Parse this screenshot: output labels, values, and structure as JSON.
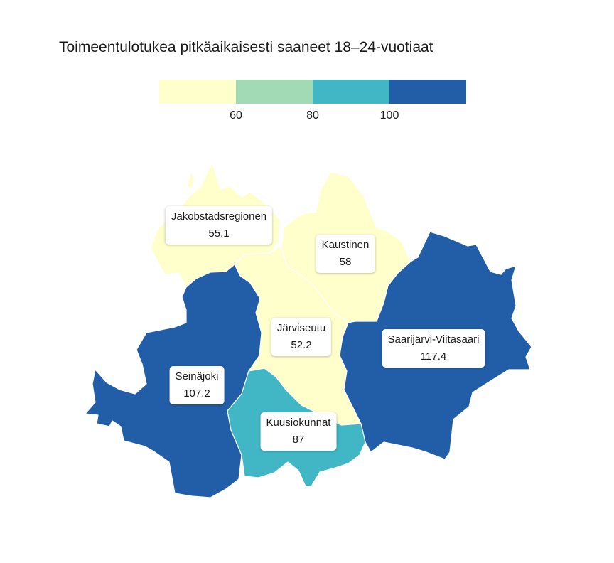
{
  "title": "Toimeentulotukea pitkäaikaisesti saaneet 18–24-vuotiaat",
  "legend": {
    "bins": [
      {
        "color": "#ffffcc"
      },
      {
        "color": "#a1dab4"
      },
      {
        "color": "#41b6c4"
      },
      {
        "color": "#225ea8"
      }
    ],
    "thresholds": [
      "60",
      "80",
      "100"
    ]
  },
  "regions": [
    {
      "name": "Jakobstadsregionen",
      "value": "55.1",
      "color": "#ffffcc"
    },
    {
      "name": "Kaustinen",
      "value": "58",
      "color": "#ffffcc"
    },
    {
      "name": "Järviseutu",
      "value": "52.2",
      "color": "#ffffcc"
    },
    {
      "name": "Saarijärvi-Viitasaari",
      "value": "117.4",
      "color": "#225ea8"
    },
    {
      "name": "Seinäjoki",
      "value": "107.2",
      "color": "#225ea8"
    },
    {
      "name": "Kuusiokunnat",
      "value": "87",
      "color": "#41b6c4"
    }
  ]
}
